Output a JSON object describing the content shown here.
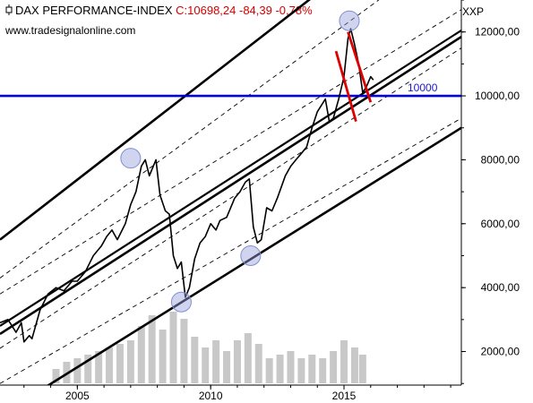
{
  "header": {
    "instrument": "DAX PERFORMANCE-INDEX",
    "quote": "C:10698,24 -84,39 -0,78%",
    "website": "www.tradesignalonline.com",
    "symbol_code": "XXP"
  },
  "colors": {
    "price": "#000000",
    "channel": "#000000",
    "support_line": "#0000cc",
    "trend_marker": "#dd0000",
    "highlight_circle": "#7f8fd0",
    "volume": "#c8c8c8",
    "annotation_text": "#1a1acc",
    "quote_text": "#d40000"
  },
  "chart_data": {
    "type": "line",
    "title": "DAX PERFORMANCE-INDEX",
    "xlabel": "",
    "ylabel": "",
    "x_ticks": [
      "2005",
      "2010",
      "2015"
    ],
    "y_ticks": [
      "2000,00",
      "4000,00",
      "6000,00",
      "8000,00",
      "10000,00",
      "12000,00"
    ],
    "xlim": [
      2002.1,
      2019.4
    ],
    "ylim": [
      950,
      13000
    ],
    "grid": false,
    "series": [
      {
        "name": "",
        "x": [
          2002.1,
          2002.4,
          2002.7,
          2002.9,
          2003.0,
          2003.2,
          2003.3,
          2003.6,
          2003.9,
          2004.2,
          2004.5,
          2004.8,
          2005.0,
          2005.3,
          2005.6,
          2005.9,
          2006.1,
          2006.3,
          2006.5,
          2006.8,
          2007.0,
          2007.2,
          2007.4,
          2007.55,
          2007.7,
          2007.8,
          2007.95,
          2008.1,
          2008.3,
          2008.45,
          2008.6,
          2008.75,
          2008.9,
          2009.05,
          2009.2,
          2009.4,
          2009.6,
          2009.8,
          2010.0,
          2010.2,
          2010.35,
          2010.6,
          2010.9,
          2011.1,
          2011.3,
          2011.45,
          2011.6,
          2011.75,
          2011.9,
          2012.1,
          2012.3,
          2012.5,
          2012.8,
          2013.0,
          2013.2,
          2013.4,
          2013.6,
          2013.8,
          2014.0,
          2014.3,
          2014.45,
          2014.6,
          2014.8,
          2015.0,
          2015.15,
          2015.25,
          2015.4,
          2015.55,
          2015.7,
          2015.85,
          2016.0,
          2016.1
        ],
        "y": [
          2900,
          3000,
          2600,
          2900,
          2300,
          2500,
          2400,
          3300,
          3800,
          4000,
          3900,
          4200,
          4200,
          4500,
          5000,
          5300,
          5600,
          5800,
          5500,
          6000,
          6600,
          7000,
          7800,
          8000,
          7500,
          7700,
          8000,
          6900,
          6400,
          6300,
          5000,
          4600,
          4800,
          3700,
          4000,
          4900,
          5400,
          5600,
          6000,
          5800,
          6100,
          6200,
          6800,
          7000,
          7300,
          7400,
          5900,
          5400,
          5500,
          6500,
          6400,
          6800,
          7500,
          7800,
          8000,
          8200,
          8400,
          9000,
          9500,
          9900,
          9200,
          9300,
          9900,
          10600,
          11800,
          12100,
          11600,
          11000,
          10100,
          10300,
          10600,
          10500
        ]
      }
    ],
    "volume": {
      "x": [
        2004.2,
        2004.6,
        2005.0,
        2005.4,
        2005.8,
        2006.2,
        2006.6,
        2007.0,
        2007.4,
        2007.8,
        2008.2,
        2008.6,
        2009.0,
        2009.4,
        2009.8,
        2010.2,
        2010.6,
        2011.0,
        2011.4,
        2011.8,
        2012.2,
        2012.6,
        2013.0,
        2013.4,
        2013.8,
        2014.2,
        2014.6,
        2015.0,
        2015.4,
        2015.7
      ],
      "values": [
        0.2,
        0.3,
        0.35,
        0.4,
        0.45,
        0.5,
        0.55,
        0.6,
        0.8,
        0.95,
        0.75,
        1.0,
        0.9,
        0.65,
        0.5,
        0.6,
        0.45,
        0.6,
        0.7,
        0.55,
        0.35,
        0.4,
        0.45,
        0.35,
        0.4,
        0.35,
        0.45,
        0.6,
        0.5,
        0.4
      ]
    },
    "channels": [
      {
        "role": "upper",
        "x": [
          2002.1,
          2019.4
        ],
        "y": [
          5500,
          16700
        ]
      },
      {
        "role": "center",
        "x": [
          2002.1,
          2019.4
        ],
        "y": [
          2550,
          11850
        ]
      },
      {
        "role": "center-parallel",
        "x": [
          2002.1,
          2019.4
        ],
        "y": [
          2800,
          12050
        ]
      },
      {
        "role": "lower",
        "x": [
          2002.1,
          2019.4
        ],
        "y": [
          0,
          9000
        ]
      },
      {
        "role": "dashed",
        "x": [
          2002.1,
          2019.4
        ],
        "y": [
          4300,
          14900
        ]
      },
      {
        "role": "dashed",
        "x": [
          2002.1,
          2019.4
        ],
        "y": [
          3800,
          12700
        ]
      },
      {
        "role": "dashed",
        "x": [
          2002.1,
          2019.4
        ],
        "y": [
          2100,
          11500
        ]
      },
      {
        "role": "dashed",
        "x": [
          2002.1,
          2019.4
        ],
        "y": [
          1000,
          9300
        ]
      }
    ],
    "support_level": {
      "y": 10000,
      "label": "10000"
    },
    "trend_markers": [
      {
        "x": [
          2014.7,
          2015.45
        ],
        "y": [
          11400,
          9200
        ]
      },
      {
        "x": [
          2015.15,
          2016.0
        ],
        "y": [
          12000,
          9800
        ]
      }
    ],
    "highlights": [
      {
        "x": 2007.0,
        "y": 8050
      },
      {
        "x": 2008.9,
        "y": 3550
      },
      {
        "x": 2011.5,
        "y": 5000
      },
      {
        "x": 2015.2,
        "y": 12350
      }
    ]
  }
}
